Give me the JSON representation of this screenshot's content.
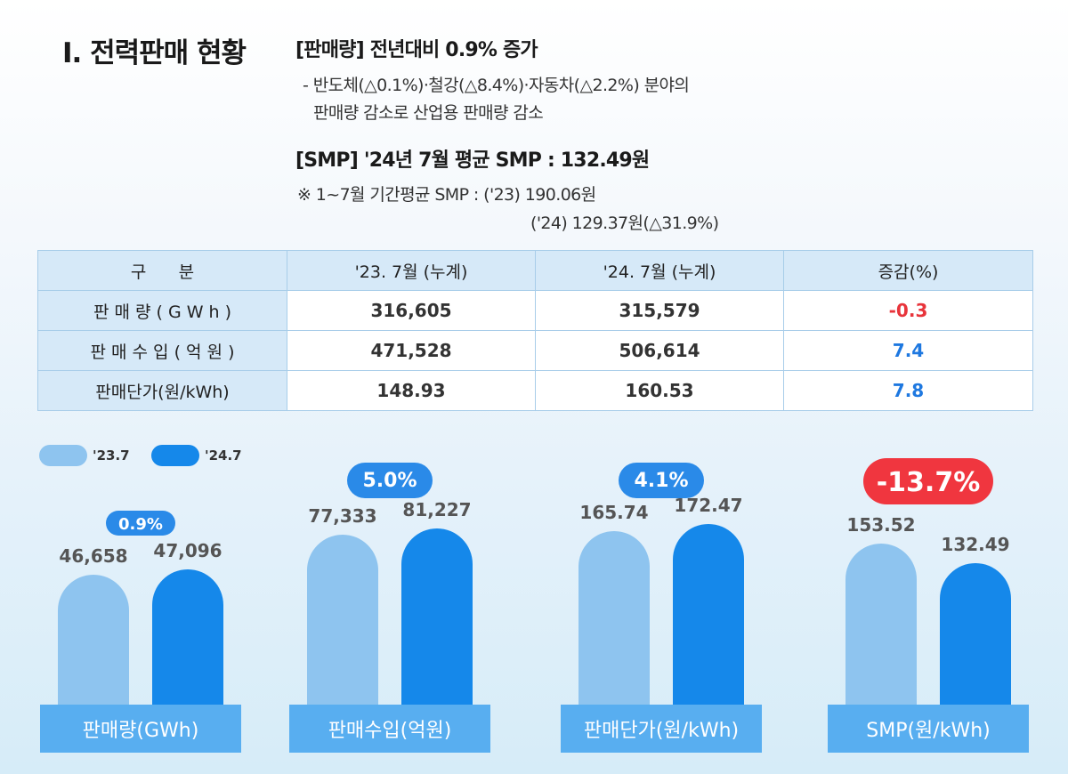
{
  "section_title": "Ⅰ. 전력판매 현황",
  "summary": {
    "sales_headline": "[판매량] 전년대비 0.9% 증가",
    "sales_detail_1": "- 반도체(△0.1%)·철강(△8.4%)·자동차(△2.2%) 분야의",
    "sales_detail_2": "판매량 감소로 산업용 판매량 감소",
    "smp_headline": "[SMP]  '24년 7월 평균 SMP : 132.49원",
    "smp_detail_1": "※ 1~7월 기간평균 SMP : ('23) 190.06원",
    "smp_detail_2": "('24) 129.37원(△31.9%)"
  },
  "table": {
    "headers": [
      "구      분",
      "'23. 7월 (누계)",
      "'24. 7월 (누계)",
      "증감(%)"
    ],
    "rows": [
      {
        "label": "판 매 량 ( G W h )",
        "v23": "316,605",
        "v24": "315,579",
        "change": "-0.3"
      },
      {
        "label": "판 매 수 입 ( 억 원 )",
        "v23": "471,528",
        "v24": "506,614",
        "change": "7.4"
      },
      {
        "label": "판매단가(원/kWh)",
        "v23": "148.93",
        "v24": "160.53",
        "change": "7.8"
      }
    ]
  },
  "colors": {
    "bar_23": "#8ec4ef",
    "bar_24": "#1588ea",
    "badge_up": "#2a8ae8",
    "badge_down": "#f0363f",
    "label_box": "#58aef0"
  },
  "chart_data": {
    "type": "bar",
    "legend": [
      "'23.7",
      "'24.7"
    ],
    "groups": [
      {
        "label": "판매량(GWh)",
        "values": [
          46658,
          47096
        ],
        "value_labels": [
          "46,658",
          "47,096"
        ],
        "change_label": "0.9%",
        "direction": "up"
      },
      {
        "label": "판매수입(억원)",
        "values": [
          77333,
          81227
        ],
        "value_labels": [
          "77,333",
          "81,227"
        ],
        "change_label": "5.0%",
        "direction": "up"
      },
      {
        "label": "판매단가(원/kWh)",
        "values": [
          165.74,
          172.47
        ],
        "value_labels": [
          "165.74",
          "172.47"
        ],
        "change_label": "4.1%",
        "direction": "up"
      },
      {
        "label": "SMP(원/kWh)",
        "values": [
          153.52,
          132.49
        ],
        "value_labels": [
          "153.52",
          "132.49"
        ],
        "change_label": "-13.7%",
        "direction": "down"
      }
    ]
  }
}
